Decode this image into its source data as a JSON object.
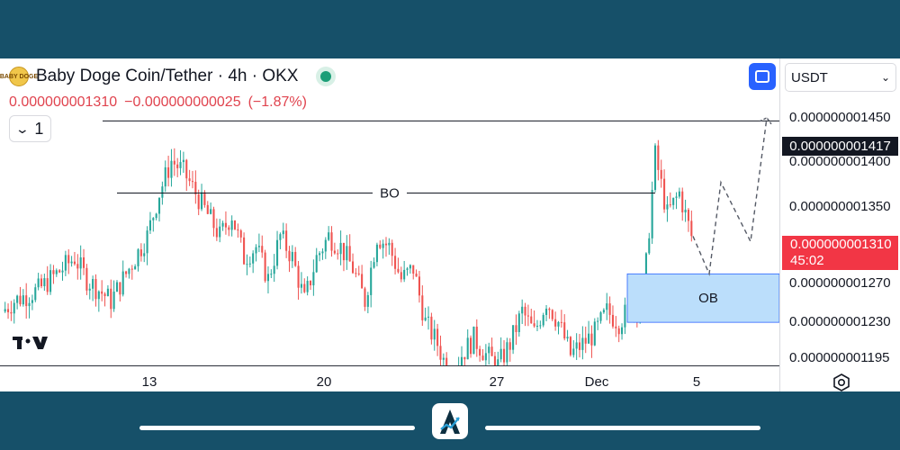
{
  "header": {
    "symbol": "Baby Doge Coin/Tether · 4h · OKX",
    "coin_icon_text": "BABY DOGE",
    "price": "0.000000001310",
    "change": "−0.000000000025",
    "change_pct": "(−1.87%)",
    "indicator_count": "1"
  },
  "quote_select": {
    "value": "USDT"
  },
  "price_scale": {
    "ticks": [
      "0.000000001450",
      "0.000000001400",
      "0.000000001350",
      "0.000000001270",
      "0.000000001230",
      "0.000000001195"
    ],
    "level_label": "0.000000001417",
    "current_label": "0.000000001310",
    "countdown": "45:02"
  },
  "time_scale": {
    "ticks": [
      "13",
      "20",
      "27",
      "Dec",
      "5"
    ]
  },
  "colors": {
    "up": "#26a69a",
    "down": "#ef5350",
    "zone": "#bbdefb",
    "zone_border": "#2962ff",
    "accent": "#2962ff",
    "frame": "#165069"
  },
  "chart_data": {
    "type": "candlestick",
    "title": "Baby Doge Coin/Tether · 4h · OKX",
    "ylim": [
      1.19e-09,
      1.475e-09
    ],
    "x_ticks": [
      "13",
      "20",
      "27",
      "Dec",
      "5"
    ],
    "last_close": 1.31e-09,
    "change": -2.5e-11,
    "change_pct": -1.87,
    "close_series": [
      1.24e-09,
      1.25e-09,
      1.255e-09,
      1.26e-09,
      1.27e-09,
      1.28e-09,
      1.29e-09,
      1.27e-09,
      1.26e-09,
      1.25e-09,
      1.27e-09,
      1.29e-09,
      1.31e-09,
      1.35e-09,
      1.38e-09,
      1.37e-09,
      1.35e-09,
      1.33e-09,
      1.31e-09,
      1.33e-09,
      1.29e-09,
      1.3e-09,
      1.27e-09,
      1.31e-09,
      1.29e-09,
      1.25e-09,
      1.29e-09,
      1.31e-09,
      1.3e-09,
      1.28e-09,
      1.25e-09,
      1.31e-09,
      1.3e-09,
      1.27e-09,
      1.28e-09,
      1.23e-09,
      1.21e-09,
      1.18e-09,
      1.2e-09,
      1.215e-09,
      1.2e-09,
      1.19e-09,
      1.21e-09,
      1.24e-09,
      1.22e-09,
      1.25e-09,
      1.23e-09,
      1.2e-09,
      1.21e-09,
      1.22e-09,
      1.24e-09,
      1.23e-09,
      1.245e-09,
      1.25e-09,
      1.385e-09,
      1.33e-09,
      1.35e-09,
      1.31e-09
    ],
    "annotations": [
      {
        "label": "BO",
        "y": 1.35e-09
      },
      {
        "label": "",
        "y": 1.417e-09
      },
      {
        "label": "OB",
        "y_low": 1.23e-09,
        "y_high": 1.275e-09
      }
    ],
    "projection": [
      1.31e-09,
      1.275e-09,
      1.36e-09,
      1.305e-09,
      1.42e-09
    ]
  }
}
